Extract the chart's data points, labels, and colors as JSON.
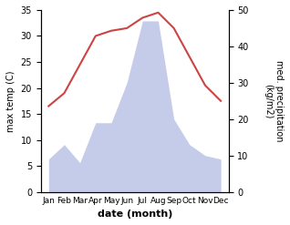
{
  "months": [
    "Jan",
    "Feb",
    "Mar",
    "Apr",
    "May",
    "Jun",
    "Jul",
    "Aug",
    "Sep",
    "Oct",
    "Nov",
    "Dec"
  ],
  "temperature": [
    16.5,
    19.0,
    24.5,
    30.0,
    31.0,
    31.5,
    33.5,
    34.5,
    31.5,
    26.0,
    20.5,
    17.5
  ],
  "precipitation": [
    9.0,
    13.0,
    8.0,
    19.0,
    19.0,
    30.0,
    47.0,
    47.0,
    20.0,
    13.0,
    10.0,
    9.0
  ],
  "temp_color": "#cc4444",
  "precip_fill_color": "#c5ccea",
  "temp_ylim": [
    0,
    35
  ],
  "precip_ylim": [
    0,
    50
  ],
  "temp_yticks": [
    0,
    5,
    10,
    15,
    20,
    25,
    30,
    35
  ],
  "precip_yticks": [
    0,
    10,
    20,
    30,
    40,
    50
  ],
  "xlabel": "date (month)",
  "ylabel_left": "max temp (C)",
  "ylabel_right": "med. precipitation\n(kg/m2)",
  "background_color": "#ffffff"
}
